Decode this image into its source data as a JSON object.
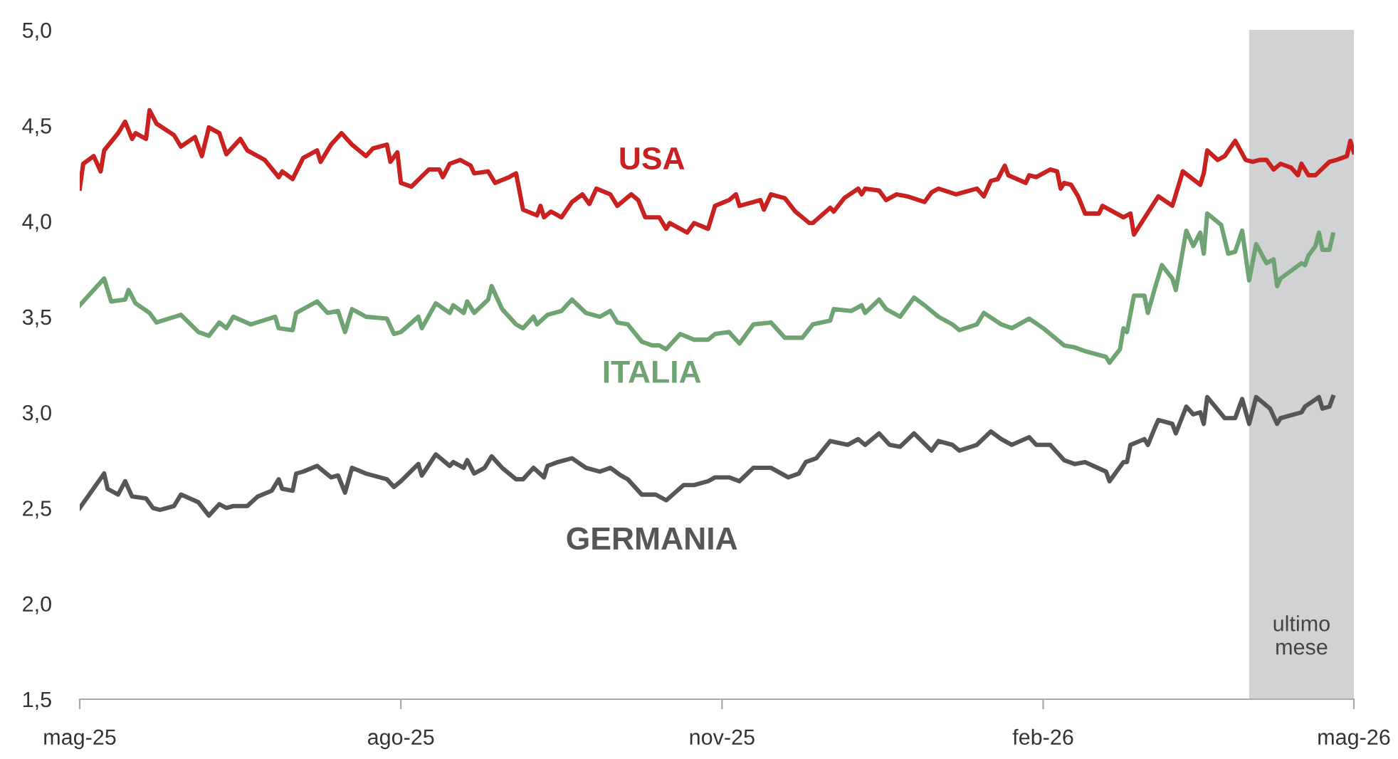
{
  "chart_data": {
    "type": "line",
    "xlim": [
      "2025-05-01",
      "2026-05-01"
    ],
    "xticks": [
      {
        "value": "2025-05-01",
        "label": "mag-25"
      },
      {
        "value": "2025-08-01",
        "label": "ago-25"
      },
      {
        "value": "2025-11-01",
        "label": "nov-25"
      },
      {
        "value": "2026-02-01",
        "label": "feb-26"
      },
      {
        "value": "2026-05-01",
        "label": "mag-26"
      }
    ],
    "ylim": [
      1.5,
      5.0
    ],
    "yticks": [
      {
        "value": 1.5,
        "label": "1,5"
      },
      {
        "value": 2.0,
        "label": "2,0"
      },
      {
        "value": 2.5,
        "label": "2,5"
      },
      {
        "value": 3.0,
        "label": "3,0"
      },
      {
        "value": 3.5,
        "label": "3,5"
      },
      {
        "value": 4.0,
        "label": "4,0"
      },
      {
        "value": 4.5,
        "label": "4,5"
      },
      {
        "value": 5.0,
        "label": "5,0"
      }
    ],
    "grid": false,
    "legend": false,
    "marker": "none",
    "line_style": "solid",
    "bands": [
      {
        "axis": "x",
        "from": "2026-04-01",
        "to": "2026-05-01",
        "label": "ultimo mese",
        "color": "#d1d2d4"
      }
    ],
    "series": [
      {
        "name": "USA",
        "color": "#c8211f",
        "x": [
          "2025-05-01",
          "2025-05-02",
          "2025-05-05",
          "2025-05-07",
          "2025-05-08",
          "2025-05-12",
          "2025-05-14",
          "2025-05-16",
          "2025-05-17",
          "2025-05-20",
          "2025-05-21",
          "2025-05-23",
          "2025-05-28",
          "2025-05-30",
          "2025-06-03",
          "2025-06-05",
          "2025-06-07",
          "2025-06-10",
          "2025-06-12",
          "2025-06-16",
          "2025-06-18",
          "2025-06-23",
          "2025-06-27",
          "2025-06-28",
          "2025-07-01",
          "2025-07-04",
          "2025-07-08",
          "2025-07-09",
          "2025-07-12",
          "2025-07-15",
          "2025-07-18",
          "2025-07-22",
          "2025-07-24",
          "2025-07-28",
          "2025-07-29",
          "2025-07-31",
          "2025-08-01",
          "2025-08-04",
          "2025-08-09",
          "2025-08-12",
          "2025-08-13",
          "2025-08-15",
          "2025-08-18",
          "2025-08-21",
          "2025-08-22",
          "2025-08-26",
          "2025-08-28",
          "2025-09-01",
          "2025-09-03",
          "2025-09-05",
          "2025-09-09",
          "2025-09-10",
          "2025-09-11",
          "2025-09-13",
          "2025-09-16",
          "2025-09-19",
          "2025-09-22",
          "2025-09-24",
          "2025-09-26",
          "2025-09-30",
          "2025-10-02",
          "2025-10-06",
          "2025-10-08",
          "2025-10-10",
          "2025-10-14",
          "2025-10-16",
          "2025-10-17",
          "2025-10-22",
          "2025-10-24",
          "2025-10-28",
          "2025-10-30",
          "2025-11-03",
          "2025-11-05",
          "2025-11-06",
          "2025-11-12",
          "2025-11-13",
          "2025-11-15",
          "2025-11-19",
          "2025-11-22",
          "2025-11-26",
          "2025-11-27",
          "2025-12-02",
          "2025-12-03",
          "2025-12-06",
          "2025-12-10",
          "2025-12-11",
          "2025-12-12",
          "2025-12-16",
          "2025-12-18",
          "2025-12-21",
          "2025-12-24",
          "2025-12-29",
          "2025-12-31",
          "2026-01-02",
          "2026-01-07",
          "2026-01-13",
          "2026-01-15",
          "2026-01-17",
          "2026-01-19",
          "2026-01-21",
          "2026-01-22",
          "2026-01-27",
          "2026-01-28",
          "2026-01-30",
          "2026-02-03",
          "2026-02-05",
          "2026-02-06",
          "2026-02-07",
          "2026-02-09",
          "2026-02-11",
          "2026-02-13",
          "2026-02-17",
          "2026-02-18",
          "2026-02-20",
          "2026-02-24",
          "2026-02-26",
          "2026-02-27",
          "2026-03-06",
          "2026-03-10",
          "2026-03-13",
          "2026-03-18",
          "2026-03-19",
          "2026-03-20",
          "2026-03-23",
          "2026-03-25",
          "2026-03-28",
          "2026-03-31",
          "2026-04-02",
          "2026-04-04",
          "2026-04-06",
          "2026-04-08",
          "2026-04-10",
          "2026-04-13",
          "2026-04-15",
          "2026-04-16",
          "2026-04-18",
          "2026-04-20",
          "2026-04-24",
          "2026-04-26",
          "2026-04-29",
          "2026-04-30",
          "2026-05-01"
        ],
        "values": [
          4.17,
          4.3,
          4.34,
          4.26,
          4.37,
          4.46,
          4.52,
          4.43,
          4.46,
          4.43,
          4.58,
          4.51,
          4.45,
          4.39,
          4.44,
          4.34,
          4.49,
          4.46,
          4.35,
          4.43,
          4.37,
          4.32,
          4.23,
          4.26,
          4.22,
          4.33,
          4.37,
          4.31,
          4.4,
          4.46,
          4.4,
          4.34,
          4.38,
          4.4,
          4.31,
          4.36,
          4.2,
          4.18,
          4.27,
          4.27,
          4.23,
          4.3,
          4.32,
          4.29,
          4.25,
          4.26,
          4.2,
          4.23,
          4.25,
          4.06,
          4.03,
          4.08,
          4.02,
          4.05,
          4.02,
          4.1,
          4.14,
          4.09,
          4.17,
          4.14,
          4.08,
          4.14,
          4.11,
          4.02,
          4.02,
          3.96,
          3.99,
          3.94,
          3.99,
          3.96,
          4.08,
          4.11,
          4.14,
          4.08,
          4.11,
          4.06,
          4.14,
          4.12,
          4.05,
          3.99,
          3.99,
          4.07,
          4.05,
          4.12,
          4.17,
          4.14,
          4.17,
          4.16,
          4.11,
          4.14,
          4.13,
          4.1,
          4.15,
          4.17,
          4.14,
          4.17,
          4.13,
          4.21,
          4.22,
          4.29,
          4.24,
          4.2,
          4.24,
          4.23,
          4.27,
          4.26,
          4.17,
          4.2,
          4.19,
          4.13,
          4.04,
          4.04,
          4.08,
          4.06,
          4.02,
          4.04,
          3.93,
          4.13,
          4.08,
          4.26,
          4.19,
          4.25,
          4.37,
          4.32,
          4.34,
          4.42,
          4.32,
          4.31,
          4.32,
          4.32,
          4.27,
          4.3,
          4.28,
          4.24,
          4.3,
          4.24,
          4.24,
          4.31,
          4.32,
          4.34,
          4.42,
          4.36
        ]
      },
      {
        "name": "ITALIA",
        "color": "#6fa374",
        "x": [
          "2025-05-01",
          "2025-05-08",
          "2025-05-10",
          "2025-05-14",
          "2025-05-15",
          "2025-05-17",
          "2025-05-21",
          "2025-05-23",
          "2025-05-30",
          "2025-06-04",
          "2025-06-07",
          "2025-06-10",
          "2025-06-12",
          "2025-06-14",
          "2025-06-19",
          "2025-06-26",
          "2025-06-27",
          "2025-07-01",
          "2025-07-02",
          "2025-07-04",
          "2025-07-08",
          "2025-07-11",
          "2025-07-14",
          "2025-07-16",
          "2025-07-18",
          "2025-07-22",
          "2025-07-28",
          "2025-07-30",
          "2025-08-01",
          "2025-08-06",
          "2025-08-07",
          "2025-08-11",
          "2025-08-15",
          "2025-08-16",
          "2025-08-19",
          "2025-08-20",
          "2025-08-22",
          "2025-08-26",
          "2025-08-27",
          "2025-08-30",
          "2025-09-03",
          "2025-09-05",
          "2025-09-08",
          "2025-09-09",
          "2025-09-12",
          "2025-09-16",
          "2025-09-19",
          "2025-09-23",
          "2025-09-27",
          "2025-09-30",
          "2025-10-02",
          "2025-10-05",
          "2025-10-09",
          "2025-10-12",
          "2025-10-14",
          "2025-10-16",
          "2025-10-20",
          "2025-10-24",
          "2025-10-28",
          "2025-10-30",
          "2025-11-03",
          "2025-11-06",
          "2025-11-10",
          "2025-11-15",
          "2025-11-19",
          "2025-11-24",
          "2025-11-27",
          "2025-12-02",
          "2025-12-03",
          "2025-12-08",
          "2025-12-11",
          "2025-12-12",
          "2025-12-16",
          "2025-12-18",
          "2025-12-22",
          "2025-12-26",
          "2025-12-29",
          "2026-01-02",
          "2026-01-06",
          "2026-01-08",
          "2026-01-13",
          "2026-01-15",
          "2026-01-20",
          "2026-01-23",
          "2026-01-28",
          "2026-02-01",
          "2026-02-07",
          "2026-02-10",
          "2026-02-13",
          "2026-02-19",
          "2026-02-20",
          "2026-02-23",
          "2026-02-24",
          "2026-02-25",
          "2026-02-27",
          "2026-03-02",
          "2026-03-03",
          "2026-03-05",
          "2026-03-07",
          "2026-03-10",
          "2026-03-11",
          "2026-03-14",
          "2026-03-16",
          "2026-03-18",
          "2026-03-19",
          "2026-03-20",
          "2026-03-24",
          "2026-03-26",
          "2026-03-28",
          "2026-03-30",
          "2026-04-01",
          "2026-04-03",
          "2026-04-06",
          "2026-04-08",
          "2026-04-09",
          "2026-04-10",
          "2026-04-16",
          "2026-04-17",
          "2026-04-18",
          "2026-04-20",
          "2026-04-21",
          "2026-04-22",
          "2026-04-24",
          "2026-04-25"
        ],
        "values": [
          3.56,
          3.7,
          3.58,
          3.59,
          3.64,
          3.57,
          3.52,
          3.47,
          3.51,
          3.42,
          3.4,
          3.47,
          3.44,
          3.5,
          3.46,
          3.5,
          3.44,
          3.43,
          3.52,
          3.54,
          3.58,
          3.52,
          3.53,
          3.42,
          3.54,
          3.5,
          3.49,
          3.41,
          3.42,
          3.5,
          3.44,
          3.57,
          3.52,
          3.56,
          3.52,
          3.58,
          3.52,
          3.59,
          3.66,
          3.54,
          3.46,
          3.44,
          3.5,
          3.46,
          3.51,
          3.53,
          3.59,
          3.52,
          3.5,
          3.53,
          3.47,
          3.46,
          3.37,
          3.35,
          3.35,
          3.33,
          3.41,
          3.38,
          3.38,
          3.41,
          3.42,
          3.36,
          3.46,
          3.47,
          3.39,
          3.39,
          3.46,
          3.48,
          3.54,
          3.53,
          3.56,
          3.52,
          3.59,
          3.54,
          3.5,
          3.6,
          3.56,
          3.5,
          3.46,
          3.43,
          3.46,
          3.52,
          3.46,
          3.44,
          3.49,
          3.44,
          3.35,
          3.34,
          3.32,
          3.29,
          3.26,
          3.33,
          3.44,
          3.42,
          3.61,
          3.61,
          3.52,
          3.65,
          3.77,
          3.7,
          3.64,
          3.95,
          3.87,
          3.94,
          3.83,
          4.04,
          3.98,
          3.83,
          3.84,
          3.95,
          3.69,
          3.88,
          3.78,
          3.8,
          3.66,
          3.7,
          3.78,
          3.77,
          3.82,
          3.87,
          3.94,
          3.85,
          3.85,
          3.93
        ]
      },
      {
        "name": "GERMANIA",
        "color": "#555658",
        "x": [
          "2025-05-01",
          "2025-05-08",
          "2025-05-09",
          "2025-05-12",
          "2025-05-14",
          "2025-05-16",
          "2025-05-20",
          "2025-05-22",
          "2025-05-24",
          "2025-05-28",
          "2025-05-30",
          "2025-06-04",
          "2025-06-07",
          "2025-06-10",
          "2025-06-12",
          "2025-06-14",
          "2025-06-18",
          "2025-06-21",
          "2025-06-25",
          "2025-06-27",
          "2025-06-28",
          "2025-07-01",
          "2025-07-02",
          "2025-07-04",
          "2025-07-08",
          "2025-07-12",
          "2025-07-14",
          "2025-07-16",
          "2025-07-18",
          "2025-07-22",
          "2025-07-28",
          "2025-07-30",
          "2025-08-01",
          "2025-08-06",
          "2025-08-07",
          "2025-08-11",
          "2025-08-15",
          "2025-08-16",
          "2025-08-19",
          "2025-08-20",
          "2025-08-22",
          "2025-08-25",
          "2025-08-27",
          "2025-08-30",
          "2025-09-03",
          "2025-09-05",
          "2025-09-08",
          "2025-09-11",
          "2025-09-12",
          "2025-09-15",
          "2025-09-19",
          "2025-09-23",
          "2025-09-27",
          "2025-09-30",
          "2025-10-03",
          "2025-10-05",
          "2025-10-09",
          "2025-10-13",
          "2025-10-16",
          "2025-10-21",
          "2025-10-24",
          "2025-10-28",
          "2025-10-30",
          "2025-11-03",
          "2025-11-06",
          "2025-11-10",
          "2025-11-15",
          "2025-11-20",
          "2025-11-23",
          "2025-11-25",
          "2025-11-28",
          "2025-12-02",
          "2025-12-07",
          "2025-12-10",
          "2025-12-12",
          "2025-12-16",
          "2025-12-19",
          "2025-12-22",
          "2025-12-26",
          "2025-12-31",
          "2026-01-02",
          "2026-01-06",
          "2026-01-08",
          "2026-01-13",
          "2026-01-17",
          "2026-01-20",
          "2026-01-23",
          "2026-01-28",
          "2026-01-30",
          "2026-02-03",
          "2026-02-07",
          "2026-02-10",
          "2026-02-13",
          "2026-02-19",
          "2026-02-20",
          "2026-02-24",
          "2026-02-25",
          "2026-02-26",
          "2026-03-02",
          "2026-03-03",
          "2026-03-05",
          "2026-03-06",
          "2026-03-10",
          "2026-03-11",
          "2026-03-14",
          "2026-03-16",
          "2026-03-18",
          "2026-03-19",
          "2026-03-20",
          "2026-03-25",
          "2026-03-28",
          "2026-03-30",
          "2026-04-01",
          "2026-04-03",
          "2026-04-07",
          "2026-04-09",
          "2026-04-10",
          "2026-04-16",
          "2026-04-17",
          "2026-04-21",
          "2026-04-22",
          "2026-04-24",
          "2026-04-25"
        ],
        "values": [
          2.5,
          2.68,
          2.6,
          2.57,
          2.64,
          2.56,
          2.55,
          2.5,
          2.49,
          2.51,
          2.57,
          2.53,
          2.46,
          2.52,
          2.5,
          2.51,
          2.51,
          2.56,
          2.59,
          2.65,
          2.6,
          2.59,
          2.68,
          2.69,
          2.72,
          2.66,
          2.67,
          2.58,
          2.71,
          2.68,
          2.65,
          2.61,
          2.64,
          2.73,
          2.67,
          2.78,
          2.72,
          2.74,
          2.71,
          2.75,
          2.68,
          2.71,
          2.77,
          2.71,
          2.65,
          2.65,
          2.71,
          2.66,
          2.72,
          2.74,
          2.76,
          2.71,
          2.69,
          2.71,
          2.67,
          2.65,
          2.57,
          2.57,
          2.54,
          2.62,
          2.62,
          2.64,
          2.66,
          2.66,
          2.64,
          2.71,
          2.71,
          2.66,
          2.68,
          2.74,
          2.76,
          2.85,
          2.83,
          2.86,
          2.83,
          2.89,
          2.83,
          2.82,
          2.89,
          2.8,
          2.85,
          2.83,
          2.8,
          2.83,
          2.9,
          2.86,
          2.83,
          2.87,
          2.83,
          2.83,
          2.75,
          2.73,
          2.74,
          2.69,
          2.64,
          2.74,
          2.74,
          2.83,
          2.86,
          2.83,
          2.92,
          2.96,
          2.94,
          2.89,
          3.03,
          2.99,
          3.0,
          2.94,
          3.08,
          2.97,
          2.97,
          3.07,
          2.94,
          3.08,
          3.02,
          2.94,
          2.97,
          3.0,
          3.03,
          3.08,
          3.02,
          3.03,
          3.08
        ]
      }
    ]
  }
}
